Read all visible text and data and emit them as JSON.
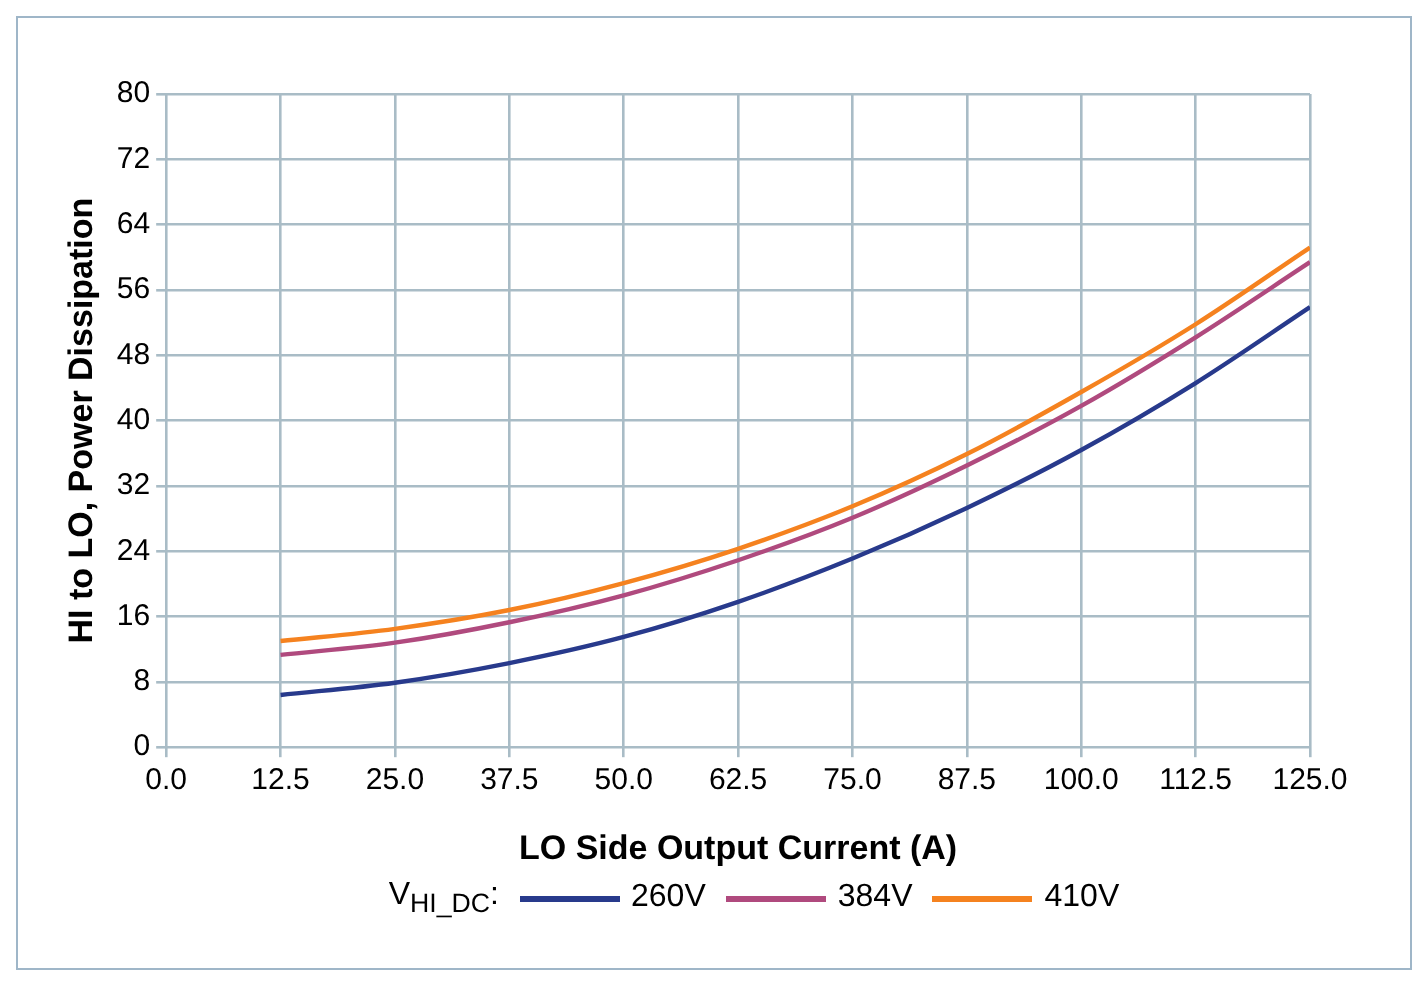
{
  "chart_data": {
    "type": "line",
    "xlabel": "LO Side Output Current (A)",
    "ylabel": "HI to LO, Power Dissipation",
    "legend_title": "V$_{HI_DC}$:",
    "x": [
      12.5,
      25,
      37.5,
      50,
      62.5,
      75,
      87.5,
      100,
      112.5,
      125
    ],
    "series": [
      {
        "name": "260V",
        "color": "#283a8c",
        "values": [
          6.4,
          7.9,
          10.3,
          13.5,
          17.8,
          23.1,
          29.3,
          36.4,
          44.6,
          53.9
        ]
      },
      {
        "name": "384V",
        "color": "#b04a7e",
        "values": [
          11.3,
          12.8,
          15.3,
          18.6,
          22.9,
          28.1,
          34.5,
          41.8,
          50.2,
          59.4
        ]
      },
      {
        "name": "410V",
        "color": "#f5821f",
        "values": [
          13.0,
          14.5,
          16.8,
          20.1,
          24.3,
          29.5,
          35.9,
          43.5,
          51.8,
          61.2
        ]
      }
    ],
    "xlim": [
      0,
      125
    ],
    "xticks": [
      {
        "value": 0,
        "label": "0.0"
      },
      {
        "value": 12.5,
        "label": "12.5"
      },
      {
        "value": 25,
        "label": "25.0"
      },
      {
        "value": 37.5,
        "label": "37.5"
      },
      {
        "value": 50,
        "label": "50.0"
      },
      {
        "value": 62.5,
        "label": "62.5"
      },
      {
        "value": 75,
        "label": "75.0"
      },
      {
        "value": 87.5,
        "label": "87.5"
      },
      {
        "value": 100,
        "label": "100.0"
      },
      {
        "value": 112.5,
        "label": "112.5"
      },
      {
        "value": 125,
        "label": "125.0"
      }
    ],
    "ylim": [
      0,
      80
    ],
    "yticks": [
      0,
      8,
      16,
      24,
      32,
      40,
      48,
      56,
      64,
      72,
      80
    ],
    "grid": true,
    "legend": "bottom",
    "marker": "none",
    "line_style": "solid"
  }
}
